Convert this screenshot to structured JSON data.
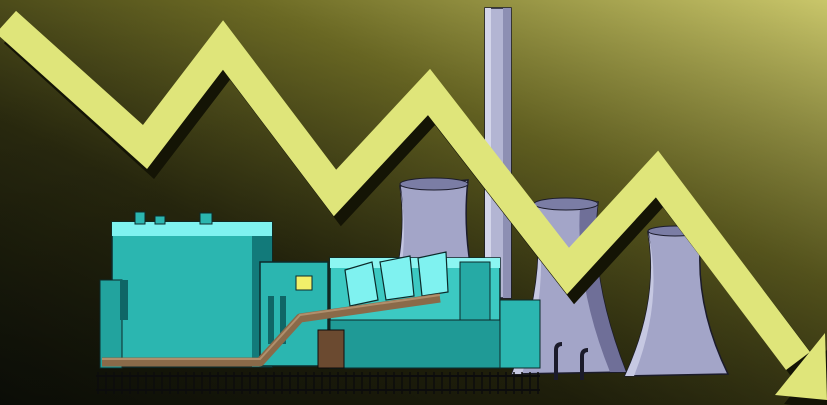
{
  "image": {
    "subject": "power-plant-with-declining-trend-arrow",
    "colors": {
      "background_dark": "#15170a",
      "background_mid": "#6c6a24",
      "background_light": "#c9c66a",
      "arrow_fill": "#dfe57a",
      "arrow_shadow": "#141405",
      "building_cyan": "#2bb6b0",
      "building_cyan_light": "#7ff2f0",
      "building_teal_dark": "#127a7a",
      "cooling_tower": "#a3a5c8",
      "cooling_tower_shadow": "#6f6f98",
      "chimney": "#b3b5d3",
      "pipe_brown": "#8a6a49",
      "fence": "#0c0c0c"
    }
  }
}
